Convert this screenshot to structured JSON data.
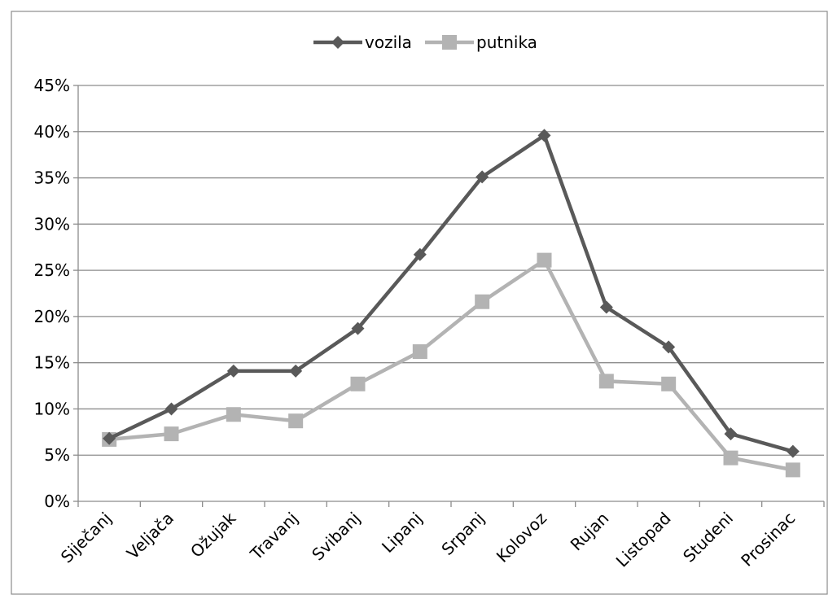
{
  "chart_data": {
    "type": "line",
    "title": "",
    "xlabel": "",
    "ylabel": "",
    "categories": [
      "Siječanj",
      "Veljača",
      "Ožujak",
      "Travanj",
      "Svibanj",
      "Lipanj",
      "Srpanj",
      "Kolovoz",
      "Rujan",
      "Listopad",
      "Studeni",
      "Prosinac"
    ],
    "y_ticks": [
      "0%",
      "5%",
      "10%",
      "15%",
      "20%",
      "25%",
      "30%",
      "35%",
      "40%",
      "45%"
    ],
    "ylim": [
      0,
      45
    ],
    "y_unit": "%",
    "grid": true,
    "legend_position": "top",
    "series": [
      {
        "name": "vozila",
        "color": "#595959",
        "marker": "diamond",
        "values": [
          6.8,
          10.0,
          14.1,
          14.1,
          18.7,
          26.7,
          35.1,
          39.6,
          21.0,
          16.7,
          7.3,
          5.4
        ]
      },
      {
        "name": "putnika",
        "color": "#b3b3b3",
        "marker": "square",
        "values": [
          6.7,
          7.3,
          9.4,
          8.7,
          12.7,
          16.2,
          21.6,
          26.1,
          13.0,
          12.7,
          4.7,
          3.4
        ]
      }
    ]
  }
}
